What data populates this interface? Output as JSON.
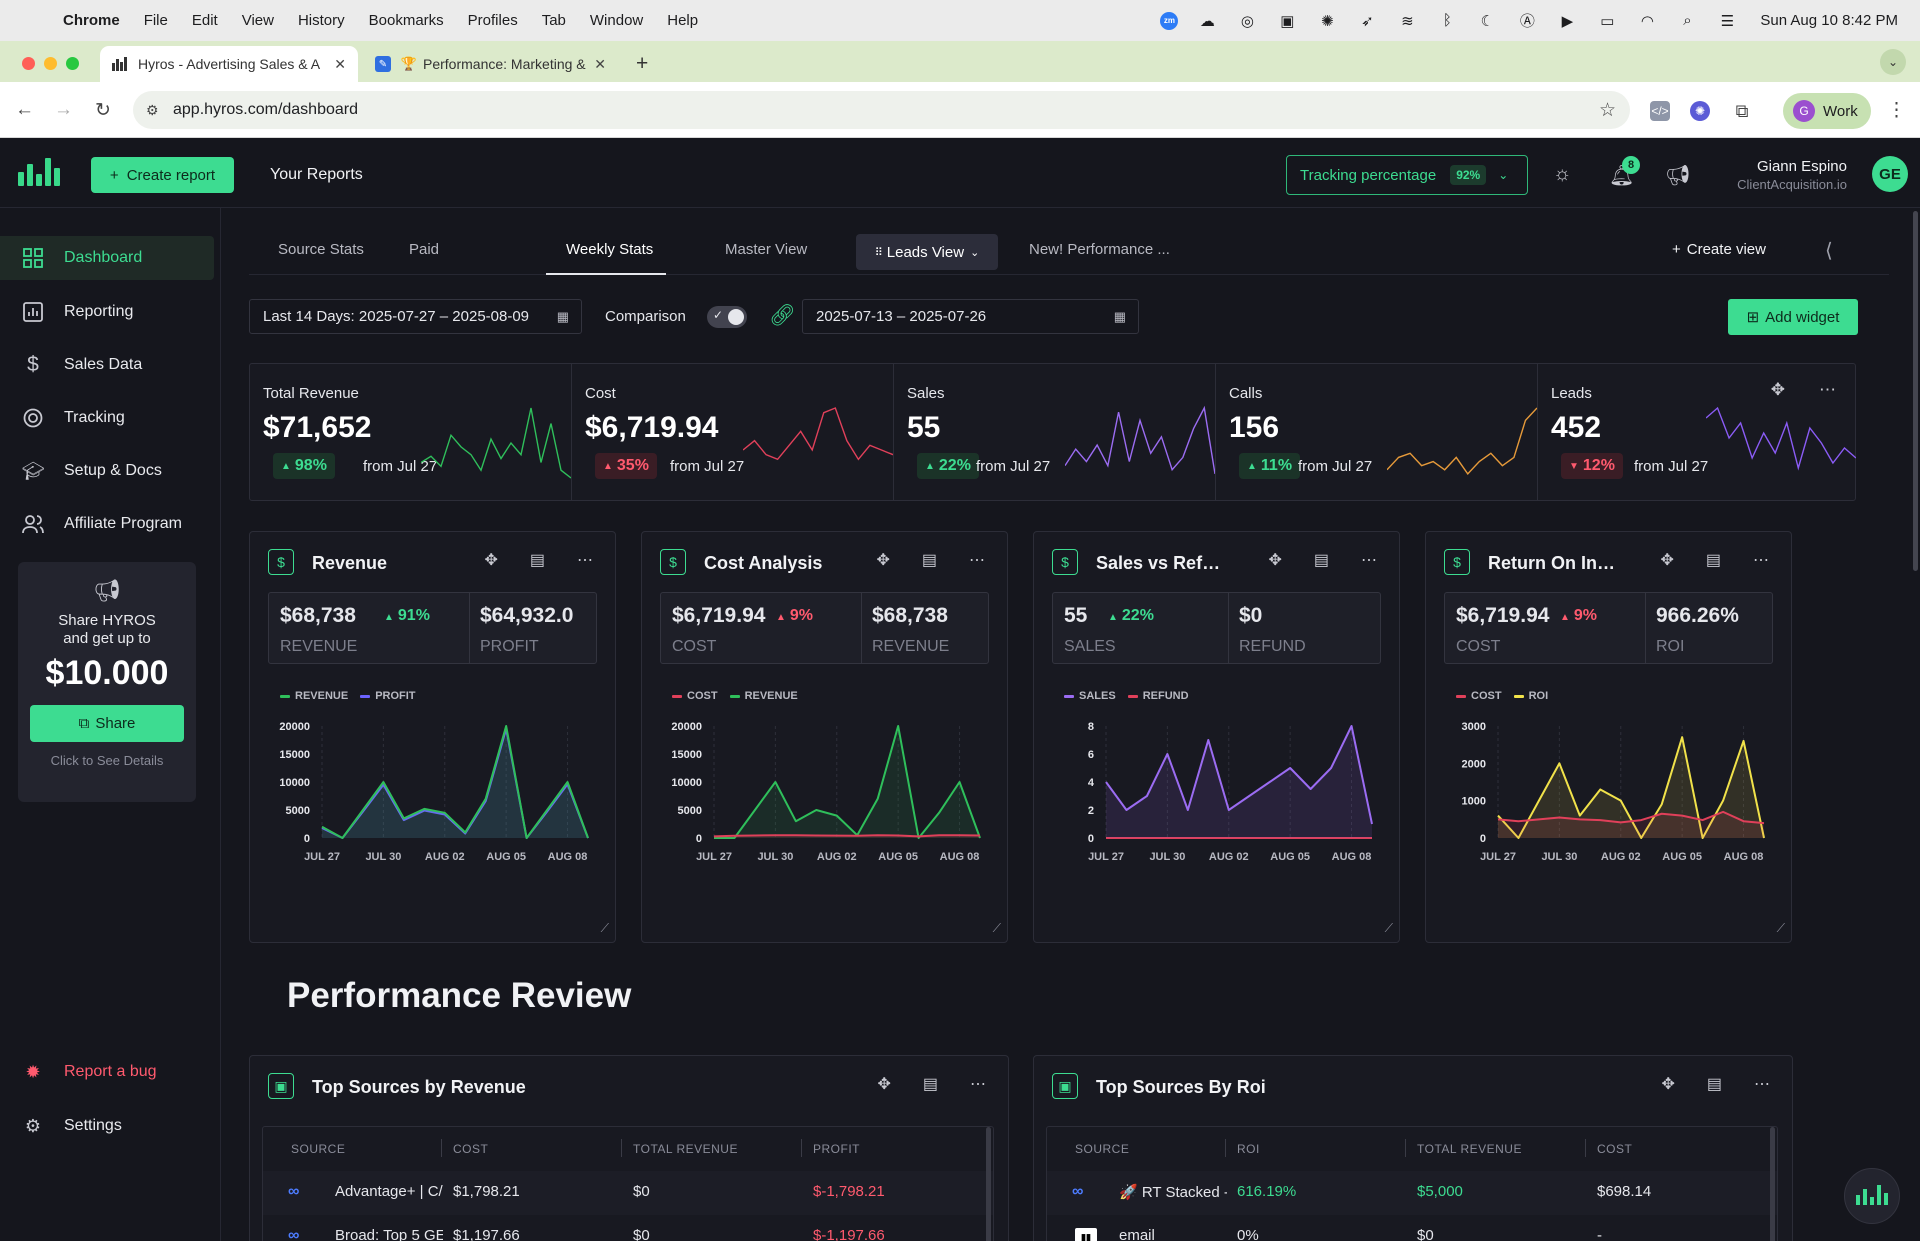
{
  "menubar": {
    "app": "Chrome",
    "items": [
      "File",
      "Edit",
      "View",
      "History",
      "Bookmarks",
      "Profiles",
      "Tab",
      "Window",
      "Help"
    ],
    "clock": "Sun Aug 10  8:42 PM",
    "zoom_icon": "zm"
  },
  "browser": {
    "tabs": [
      {
        "title": "Hyros - Advertising Sales & A"
      },
      {
        "title": "Performance: Marketing & "
      }
    ],
    "url": "app.hyros.com/dashboard",
    "profile": {
      "initial": "G",
      "name": "Work"
    }
  },
  "header": {
    "create_report": "Create report",
    "your_reports": "Your Reports",
    "tracking_label": "Tracking percentage",
    "tracking_pct": "92%",
    "notifications": "8",
    "user_name": "Giann Espino",
    "user_company": "ClientAcquisition.io",
    "user_initials": "GE"
  },
  "sidebar": {
    "items": [
      {
        "label": "Dashboard",
        "icon": "grid-icon",
        "active": true
      },
      {
        "label": "Reporting",
        "icon": "chart-icon"
      },
      {
        "label": "Sales Data",
        "icon": "dollar-icon"
      },
      {
        "label": "Tracking",
        "icon": "target-icon"
      },
      {
        "label": "Setup & Docs",
        "icon": "graduation-icon"
      },
      {
        "label": "Affiliate Program",
        "icon": "users-icon"
      }
    ],
    "share_card": {
      "line1": "Share HYROS",
      "line2": "and get up to",
      "amount": "$10.000",
      "button": "Share",
      "hint": "Click to See Details"
    },
    "report_bug": "Report a bug",
    "settings": "Settings"
  },
  "toolbar": {
    "tabs": [
      "Source Stats",
      "Paid",
      "Weekly Stats",
      "Master View",
      "Leads View",
      "New! Performance ..."
    ],
    "active_tab": "Weekly Stats",
    "create_view": "Create view",
    "date_range": "Last 14 Days: 2025-07-27 – 2025-08-09",
    "comparison_label": "Comparison",
    "comparison_range": "2025-07-13 – 2025-07-26",
    "add_widget": "Add widget"
  },
  "stats": [
    {
      "label": "Total Revenue",
      "value": "$71,652",
      "delta": "98%",
      "dir": "up",
      "from": "from Jul 27",
      "color": "#2fbf5b"
    },
    {
      "label": "Cost",
      "value": "$6,719.94",
      "delta": "35%",
      "dir": "up-bad",
      "from": "from Jul 27",
      "color": "#e0405a"
    },
    {
      "label": "Sales",
      "value": "55",
      "delta": "22%",
      "dir": "up",
      "from": "from Jul 27",
      "color": "#9b6cf2"
    },
    {
      "label": "Calls",
      "value": "156",
      "delta": "11%",
      "dir": "up",
      "from": "from Jul 27",
      "color": "#e69a3a"
    },
    {
      "label": "Leads",
      "value": "452",
      "delta": "12%",
      "dir": "down",
      "from": "from Jul 27",
      "color": "#8b5cf6"
    }
  ],
  "widgets": [
    {
      "title": "Revenue",
      "kpi": [
        {
          "value": "$68,738",
          "delta": "91%",
          "dir": "up",
          "label": "REVENUE"
        },
        {
          "value": "$64,932.0",
          "label": "PROFIT"
        }
      ],
      "legend": [
        {
          "name": "REVENUE",
          "color": "#2fbf5b"
        },
        {
          "name": "PROFIT",
          "color": "#6c63ff"
        }
      ]
    },
    {
      "title": "Cost Analysis",
      "kpi": [
        {
          "value": "$6,719.94",
          "delta": "9%",
          "dir": "down",
          "label": "COST"
        },
        {
          "value": "$68,738",
          "label": "REVENUE"
        }
      ],
      "legend": [
        {
          "name": "COST",
          "color": "#e0405a"
        },
        {
          "name": "REVENUE",
          "color": "#2fbf5b"
        }
      ]
    },
    {
      "title": "Sales vs Refunds",
      "kpi": [
        {
          "value": "55",
          "delta": "22%",
          "dir": "up",
          "label": "SALES"
        },
        {
          "value": "$0",
          "label": "REFUND"
        }
      ],
      "legend": [
        {
          "name": "SALES",
          "color": "#9b6cf2"
        },
        {
          "name": "REFUND",
          "color": "#e0405a"
        }
      ]
    },
    {
      "title": "Return On Inve...",
      "kpi": [
        {
          "value": "$6,719.94",
          "delta": "9%",
          "dir": "down",
          "label": "COST"
        },
        {
          "value": "966.26%",
          "label": "ROI"
        }
      ],
      "legend": [
        {
          "name": "COST",
          "color": "#e0405a"
        },
        {
          "name": "ROI",
          "color": "#f1e24a"
        }
      ]
    }
  ],
  "chart_data": [
    {
      "type": "area",
      "categories": [
        "JUL 27",
        "JUL 28",
        "JUL 29",
        "JUL 30",
        "JUL 31",
        "AUG 01",
        "AUG 02",
        "AUG 03",
        "AUG 04",
        "AUG 05",
        "AUG 06",
        "AUG 07",
        "AUG 08",
        "AUG 09"
      ],
      "xticks": [
        "JUL 27",
        "JUL 30",
        "AUG 02",
        "AUG 05",
        "AUG 08"
      ],
      "yticks": [
        0,
        5000,
        10000,
        15000,
        20000
      ],
      "ylim": [
        0,
        20000
      ],
      "series": [
        {
          "name": "REVENUE",
          "color": "#2fbf5b",
          "values": [
            2000,
            0,
            5000,
            10000,
            3500,
            5200,
            4500,
            1000,
            7000,
            20000,
            0,
            5000,
            10000,
            0
          ]
        },
        {
          "name": "PROFIT",
          "color": "#6c63ff",
          "values": [
            1800,
            0,
            4700,
            9500,
            3200,
            4900,
            4200,
            800,
            6600,
            19500,
            0,
            4700,
            9600,
            0
          ]
        }
      ]
    },
    {
      "type": "area",
      "categories": [
        "JUL 27",
        "JUL 28",
        "JUL 29",
        "JUL 30",
        "JUL 31",
        "AUG 01",
        "AUG 02",
        "AUG 03",
        "AUG 04",
        "AUG 05",
        "AUG 06",
        "AUG 07",
        "AUG 08",
        "AUG 09"
      ],
      "xticks": [
        "JUL 27",
        "JUL 30",
        "AUG 02",
        "AUG 05",
        "AUG 08"
      ],
      "yticks": [
        0,
        5000,
        10000,
        15000,
        20000
      ],
      "ylim": [
        0,
        20000
      ],
      "series": [
        {
          "name": "COST",
          "color": "#e0405a",
          "values": [
            300,
            400,
            450,
            500,
            480,
            450,
            420,
            400,
            500,
            450,
            300,
            500,
            480,
            450
          ]
        },
        {
          "name": "REVENUE",
          "color": "#2fbf5b",
          "values": [
            0,
            0,
            5000,
            10000,
            3000,
            5000,
            4000,
            500,
            7000,
            20000,
            0,
            4500,
            10000,
            0
          ]
        }
      ]
    },
    {
      "type": "area",
      "categories": [
        "JUL 27",
        "JUL 28",
        "JUL 29",
        "JUL 30",
        "JUL 31",
        "AUG 01",
        "AUG 02",
        "AUG 03",
        "AUG 04",
        "AUG 05",
        "AUG 06",
        "AUG 07",
        "AUG 08",
        "AUG 09"
      ],
      "xticks": [
        "JUL 27",
        "JUL 30",
        "AUG 02",
        "AUG 05",
        "AUG 08"
      ],
      "yticks": [
        0,
        2,
        4,
        6,
        8
      ],
      "ylim": [
        0,
        8
      ],
      "series": [
        {
          "name": "SALES",
          "color": "#9b6cf2",
          "values": [
            4,
            2,
            3,
            6,
            2,
            7,
            2,
            3,
            4,
            5,
            3.5,
            5,
            8,
            1
          ]
        },
        {
          "name": "REFUND",
          "color": "#e0405a",
          "values": [
            0,
            0,
            0,
            0,
            0,
            0,
            0,
            0,
            0,
            0,
            0,
            0,
            0,
            0
          ]
        }
      ]
    },
    {
      "type": "line",
      "categories": [
        "JUL 27",
        "JUL 28",
        "JUL 29",
        "JUL 30",
        "JUL 31",
        "AUG 01",
        "AUG 02",
        "AUG 03",
        "AUG 04",
        "AUG 05",
        "AUG 06",
        "AUG 07",
        "AUG 08",
        "AUG 09"
      ],
      "xticks": [
        "JUL 27",
        "JUL 30",
        "AUG 02",
        "AUG 05",
        "AUG 08"
      ],
      "yticks": [
        0,
        1000,
        2000,
        3000
      ],
      "ylim": [
        0,
        3000
      ],
      "series": [
        {
          "name": "COST",
          "color": "#e0405a",
          "values": [
            500,
            450,
            500,
            550,
            500,
            480,
            420,
            480,
            650,
            600,
            480,
            700,
            450,
            400
          ]
        },
        {
          "name": "ROI",
          "color": "#f1e24a",
          "values": [
            600,
            0,
            1000,
            2000,
            600,
            1300,
            1000,
            0,
            900,
            2700,
            0,
            1000,
            2600,
            0
          ]
        }
      ]
    }
  ],
  "sparklines": [
    [
      20,
      28,
      15,
      55,
      40,
      30,
      10,
      50,
      25,
      45,
      30,
      90,
      20,
      70,
      10,
      0
    ],
    [
      30,
      40,
      25,
      20,
      35,
      50,
      30,
      70,
      75,
      40,
      20,
      35,
      30,
      25
    ],
    [
      15,
      35,
      20,
      40,
      15,
      80,
      20,
      70,
      30,
      50,
      10,
      25,
      60,
      85,
      5
    ],
    [
      10,
      25,
      30,
      15,
      20,
      10,
      25,
      5,
      20,
      30,
      15,
      25,
      70,
      85
    ],
    [
      60,
      70,
      40,
      55,
      20,
      45,
      25,
      55,
      10,
      50,
      35,
      15,
      30,
      20
    ]
  ],
  "performance": {
    "title": "Performance Review",
    "tables": [
      {
        "title": "Top Sources by Revenue",
        "columns": [
          "SOURCE",
          "COST",
          "TOTAL REVENUE",
          "PROFIT"
        ],
        "rows": [
          {
            "source": "Advantage+ | C/",
            "c2": "$1,798.21",
            "c3": "$0",
            "c4": "$-1,798.21"
          },
          {
            "source": "Broad: Top 5 GE",
            "c2": "$1,197.66",
            "c3": "$0",
            "c4": "$-1,197.66"
          }
        ]
      },
      {
        "title": "Top Sources By Roi",
        "columns": [
          "SOURCE",
          "ROI",
          "TOTAL REVENUE",
          "COST"
        ],
        "rows": [
          {
            "source": "🚀 RT Stacked -",
            "c2": "616.19%",
            "c3": "$5,000",
            "c4": "$698.14"
          },
          {
            "source": "email",
            "c2": "0%",
            "c3": "$0",
            "c4": "-"
          }
        ]
      }
    ]
  }
}
